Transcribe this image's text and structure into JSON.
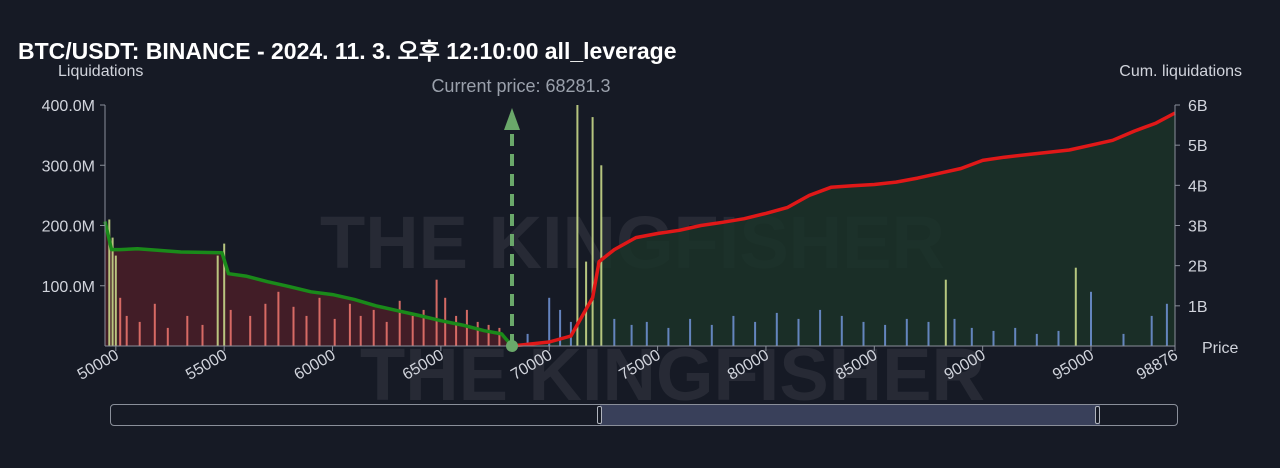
{
  "title": "BTC/USDT: BINANCE - 2024. 11. 3. 오후 12:10:00 all_leverage",
  "chart_data": {
    "type": "bar",
    "title": "BTC/USDT: BINANCE - 2024. 11. 3. 오후 12:10:00 all_leverage",
    "current_price_label": "Current price: 68281.3",
    "current_price": 68281.3,
    "xlabel": "Price",
    "ylabel_left": "Liquidations",
    "ylabel_right": "Cum. liquidations",
    "xlim": [
      49500,
      98876
    ],
    "ylim_left": [
      0,
      400000000
    ],
    "ylim_right": [
      0,
      6000000000
    ],
    "x_ticks": [
      "50000",
      "55000",
      "60000",
      "65000",
      "70000",
      "75000",
      "80000",
      "85000",
      "90000",
      "95000",
      "98876"
    ],
    "y_ticks_left": [
      "100.0M",
      "200.0M",
      "300.0M",
      "400.0M"
    ],
    "y_ticks_right": [
      "1B",
      "2B",
      "3B",
      "4B",
      "5B",
      "6B"
    ],
    "watermark": "THE KINGFISHER.io",
    "colors": {
      "short_bars": "#e8736c",
      "long_bars": "#6d8fcf",
      "leverage_bars": "#c8d88a",
      "cum_short_line": "#1a8a1a",
      "cum_long_line": "#e01818",
      "current_price_marker": "#6aa86a"
    },
    "series": [
      {
        "name": "cum_liquidations_below",
        "x": [
          49500,
          49800,
          50200,
          51000,
          52000,
          53000,
          54000,
          54900,
          55200,
          56000,
          57000,
          58000,
          59000,
          60000,
          61000,
          62000,
          63000,
          64000,
          65000,
          66000,
          67000,
          67800,
          68281
        ],
        "values": [
          3100000000,
          2400000000,
          2400000000,
          2420000000,
          2380000000,
          2340000000,
          2330000000,
          2320000000,
          1800000000,
          1740000000,
          1600000000,
          1480000000,
          1350000000,
          1280000000,
          1160000000,
          1000000000,
          880000000,
          760000000,
          630000000,
          520000000,
          380000000,
          300000000,
          0
        ]
      },
      {
        "name": "cum_liquidations_above",
        "x": [
          68281,
          70000,
          71000,
          72000,
          72300,
          73000,
          74000,
          75000,
          76000,
          77000,
          78000,
          79000,
          80000,
          81000,
          82000,
          83000,
          84000,
          85000,
          86000,
          87000,
          88000,
          89000,
          90000,
          91000,
          92000,
          93000,
          94000,
          95000,
          96000,
          97000,
          98000,
          98876
        ],
        "values": [
          0,
          100000000,
          250000000,
          1200000000,
          2100000000,
          2400000000,
          2700000000,
          2800000000,
          2880000000,
          3000000000,
          3080000000,
          3170000000,
          3300000000,
          3450000000,
          3750000000,
          3950000000,
          3990000000,
          4020000000,
          4080000000,
          4180000000,
          4300000000,
          4420000000,
          4620000000,
          4700000000,
          4760000000,
          4820000000,
          4880000000,
          5000000000,
          5120000000,
          5350000000,
          5550000000,
          5800000000
        ]
      },
      {
        "name": "liquidations_below",
        "x": [
          49700,
          49850,
          50000,
          50200,
          50500,
          51100,
          51800,
          52400,
          53300,
          54000,
          54700,
          55000,
          55300,
          56200,
          56900,
          57500,
          58200,
          58800,
          59400,
          60100,
          60800,
          61300,
          61900,
          62500,
          63100,
          63700,
          64200,
          64800,
          65200,
          65700,
          66200,
          66700,
          67200,
          67700
        ],
        "values": [
          210000000,
          180000000,
          150000000,
          80000000,
          50000000,
          40000000,
          70000000,
          30000000,
          50000000,
          35000000,
          150000000,
          170000000,
          60000000,
          50000000,
          70000000,
          90000000,
          65000000,
          50000000,
          80000000,
          45000000,
          70000000,
          50000000,
          60000000,
          40000000,
          75000000,
          50000000,
          60000000,
          110000000,
          80000000,
          50000000,
          60000000,
          40000000,
          35000000,
          30000000
        ]
      },
      {
        "name": "liquidations_above",
        "x": [
          69000,
          70000,
          70500,
          71000,
          71300,
          71700,
          72000,
          72400,
          73000,
          73800,
          74500,
          75500,
          76500,
          77500,
          78500,
          79500,
          80500,
          81500,
          82500,
          83500,
          84500,
          85500,
          86500,
          87500,
          88300,
          88700,
          89500,
          90500,
          91500,
          92500,
          93500,
          94300,
          95000,
          96500,
          97800,
          98500
        ],
        "values": [
          20000000,
          80000000,
          60000000,
          40000000,
          400000000,
          140000000,
          380000000,
          300000000,
          45000000,
          35000000,
          40000000,
          30000000,
          45000000,
          35000000,
          50000000,
          40000000,
          55000000,
          45000000,
          60000000,
          50000000,
          40000000,
          35000000,
          45000000,
          40000000,
          110000000,
          45000000,
          30000000,
          25000000,
          30000000,
          20000000,
          25000000,
          130000000,
          90000000,
          20000000,
          50000000,
          70000000
        ]
      }
    ]
  }
}
